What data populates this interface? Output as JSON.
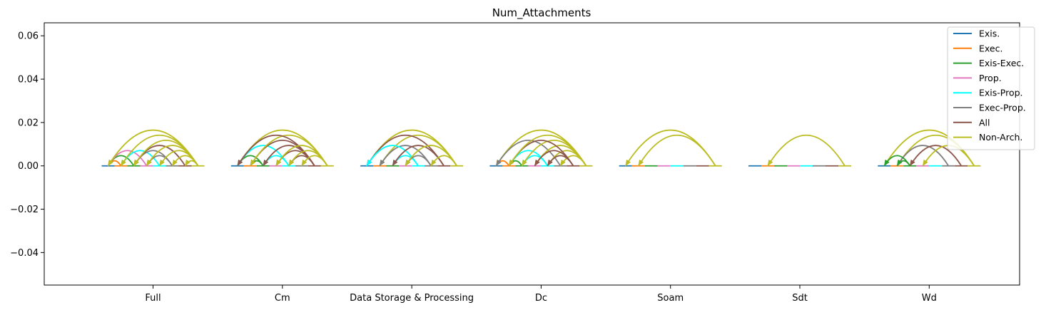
{
  "chart_data": {
    "type": "arc",
    "title": "Num_Attachments",
    "xlabel": "",
    "ylabel": "",
    "ylim": [
      -0.055,
      0.066
    ],
    "yticks": [
      "0.06",
      "0.04",
      "0.02",
      "0.00",
      "−0.02",
      "−0.04"
    ],
    "ytick_values": [
      0.06,
      0.04,
      0.02,
      0.0,
      -0.02,
      -0.04
    ],
    "categories": [
      "Full",
      "Cm",
      "Data Storage & Processing",
      "Dc",
      "Soam",
      "Sdt",
      "Wd"
    ],
    "grid": false,
    "legend_position": "top-right",
    "series": [
      {
        "name": "Exis.",
        "color": "#1f77b4"
      },
      {
        "name": "Exec.",
        "color": "#ff7f0e"
      },
      {
        "name": "Exis-Exec.",
        "color": "#2ca02c"
      },
      {
        "name": "Prop.",
        "color": "#e377c2"
      },
      {
        "name": "Exis-Prop.",
        "color": "#00ffff"
      },
      {
        "name": "Exec-Prop.",
        "color": "#7f7f7f"
      },
      {
        "name": "All",
        "color": "#8c564b"
      },
      {
        "name": "Non-Arch.",
        "color": "#bcbd22"
      }
    ],
    "groups": [
      {
        "category": "Full",
        "arcs": [
          [
            0,
            1
          ],
          [
            0,
            2
          ],
          [
            0,
            3
          ],
          [
            1,
            4
          ],
          [
            2,
            5
          ],
          [
            3,
            5
          ],
          [
            2,
            6
          ],
          [
            4,
            7
          ],
          [
            6,
            7
          ],
          [
            1,
            7
          ],
          [
            0,
            7
          ],
          [
            2,
            7
          ],
          [
            3,
            7
          ],
          [
            5,
            7
          ]
        ]
      },
      {
        "category": "Cm",
        "arcs": [
          [
            0,
            7
          ],
          [
            0,
            2
          ],
          [
            1,
            2
          ],
          [
            0,
            4
          ],
          [
            2,
            4
          ],
          [
            1,
            6
          ],
          [
            2,
            6
          ],
          [
            3,
            6
          ],
          [
            4,
            6
          ],
          [
            1,
            7
          ],
          [
            0,
            6
          ],
          [
            3,
            7
          ],
          [
            4,
            7
          ],
          [
            5,
            7
          ]
        ]
      },
      {
        "category": "Data Storage & Processing",
        "arcs": [
          [
            0,
            7
          ],
          [
            1,
            7
          ],
          [
            0,
            6
          ],
          [
            1,
            5
          ],
          [
            0,
            4
          ],
          [
            2,
            4
          ],
          [
            3,
            5
          ],
          [
            2,
            6
          ],
          [
            3,
            7
          ],
          [
            5,
            7
          ]
        ]
      },
      {
        "category": "Dc",
        "arcs": [
          [
            0,
            7
          ],
          [
            0,
            1
          ],
          [
            0,
            5
          ],
          [
            1,
            2
          ],
          [
            1,
            4
          ],
          [
            2,
            4
          ],
          [
            2,
            7
          ],
          [
            3,
            7
          ],
          [
            4,
            7
          ],
          [
            5,
            7
          ],
          [
            3,
            6
          ],
          [
            4,
            6
          ],
          [
            1,
            6
          ],
          [
            1,
            7
          ]
        ]
      },
      {
        "category": "Soam",
        "arcs": [
          [
            0,
            7
          ],
          [
            1,
            7
          ]
        ]
      },
      {
        "category": "Sdt",
        "arcs": [
          [
            1,
            7
          ]
        ]
      },
      {
        "category": "Wd",
        "arcs": [
          [
            0,
            7
          ],
          [
            1,
            7
          ],
          [
            1,
            5
          ],
          [
            0,
            2
          ],
          [
            1,
            2
          ],
          [
            2,
            6
          ],
          [
            3,
            7
          ]
        ]
      }
    ]
  }
}
